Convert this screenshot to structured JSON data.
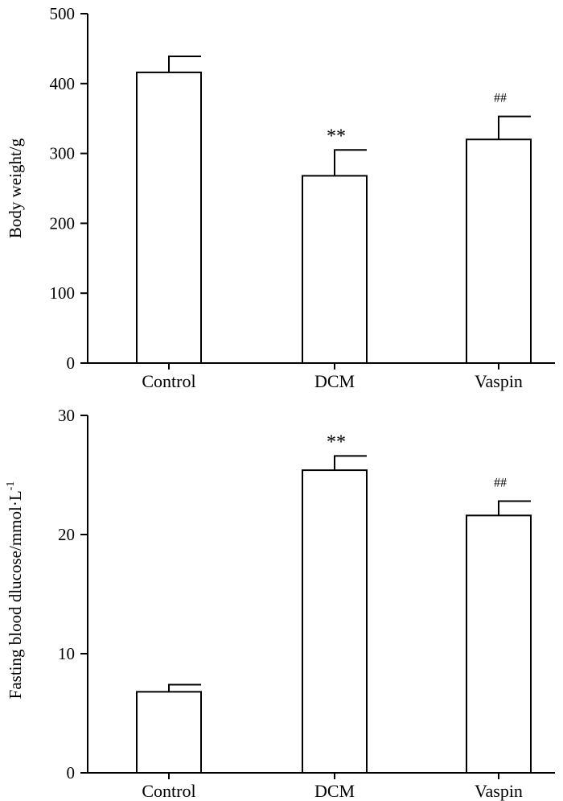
{
  "chart_data": [
    {
      "type": "bar",
      "title": "",
      "xlabel": "",
      "ylabel": "Body weight/g",
      "categories": [
        "Control",
        "DCM",
        "Vaspin"
      ],
      "values": [
        416,
        268,
        320
      ],
      "errors": [
        23,
        37,
        33
      ],
      "annotations": [
        "",
        "**",
        "##"
      ],
      "ylim": [
        0,
        500
      ],
      "yticks": [
        0,
        100,
        200,
        300,
        400,
        500
      ],
      "grid": false,
      "legend": "none"
    },
    {
      "type": "bar",
      "title": "",
      "xlabel": "",
      "ylabel": "Fasting blood dlucose/mmol·L",
      "ylabel_sup": "-1",
      "categories": [
        "Control",
        "DCM",
        "Vaspin"
      ],
      "values": [
        6.8,
        25.4,
        21.6
      ],
      "errors": [
        0.6,
        1.2,
        1.2
      ],
      "annotations": [
        "",
        "**",
        "##"
      ],
      "ylim": [
        0,
        30
      ],
      "yticks": [
        0,
        10,
        20,
        30
      ],
      "grid": false,
      "legend": "none"
    }
  ]
}
